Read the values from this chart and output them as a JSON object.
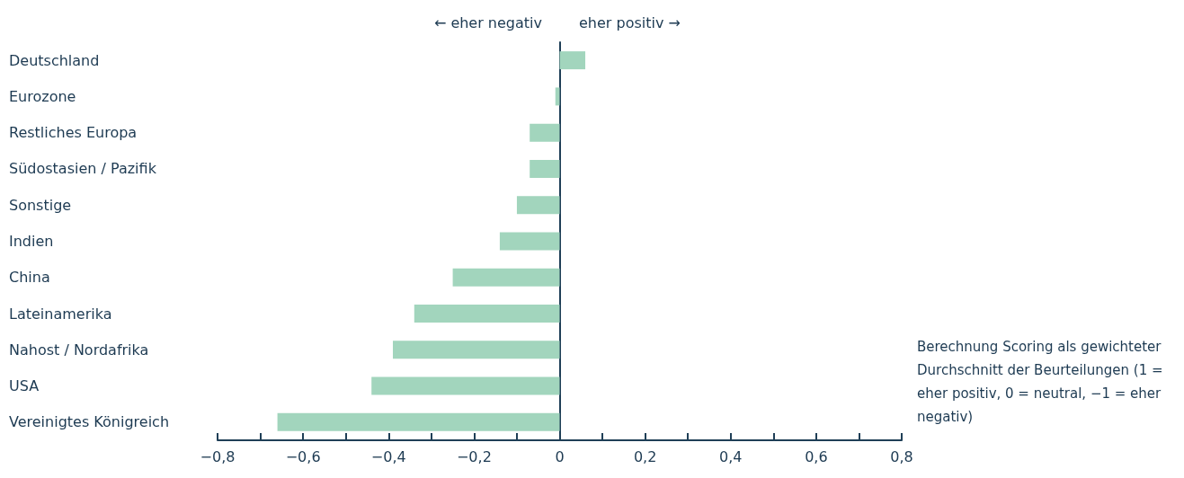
{
  "chart_data": {
    "type": "bar",
    "orientation": "horizontal",
    "categories": [
      "Deutschland",
      "Eurozone",
      "Restliches Europa",
      "Südostasien / Pazifik",
      "Sonstige",
      "Indien",
      "China",
      "Lateinamerika",
      "Nahost / Nordafrika",
      "USA",
      "Vereinigtes Königreich"
    ],
    "values": [
      0.06,
      -0.01,
      -0.07,
      -0.07,
      -0.1,
      -0.14,
      -0.25,
      -0.34,
      -0.39,
      -0.44,
      -0.66
    ],
    "color": "#a2d5bd",
    "xlim": [
      -0.8,
      0.8
    ],
    "xticks": [
      {
        "value": -0.8,
        "label": "−0,8"
      },
      {
        "value": -0.7,
        "label": null
      },
      {
        "value": -0.6,
        "label": "−0,6"
      },
      {
        "value": -0.5,
        "label": null
      },
      {
        "value": -0.4,
        "label": "−0,4"
      },
      {
        "value": -0.3,
        "label": null
      },
      {
        "value": -0.2,
        "label": "−0,2"
      },
      {
        "value": -0.1,
        "label": null
      },
      0,
      {
        "value": 0.1,
        "label": null
      },
      {
        "value": 0.2,
        "label": "0,2"
      },
      {
        "value": 0.3,
        "label": null
      },
      {
        "value": 0.4,
        "label": "0,4"
      },
      {
        "value": 0.5,
        "label": null
      },
      {
        "value": 0.6,
        "label": "0,6"
      },
      {
        "value": 0.7,
        "label": null
      },
      {
        "value": 0.8,
        "label": "0,8"
      }
    ],
    "annotations": [
      "← eher negativ",
      "eher positiv →",
      "Berechnung Scoring als gewichteter Durchschnitt der Beurteilungen (1 = eher positiv, 0 = neutral, −1 = eher negativ)"
    ],
    "grid": false
  }
}
